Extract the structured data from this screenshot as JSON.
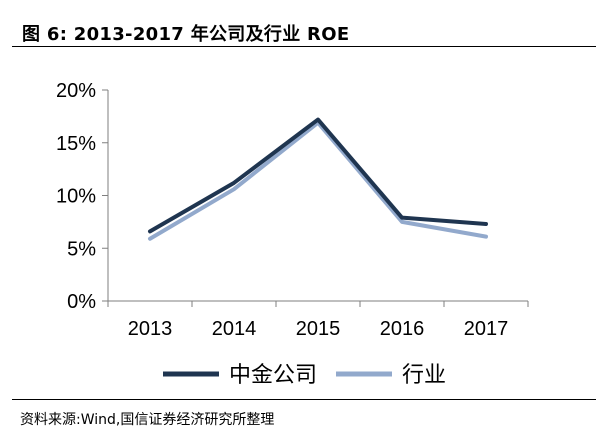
{
  "header": {
    "title": "图 6:  2013-2017 年公司及行业 ROE"
  },
  "footer": {
    "source": "资料来源:Wind,国信证券经济研究所整理"
  },
  "chart_data": {
    "type": "line",
    "title": "",
    "xlabel": "",
    "ylabel": "",
    "categories": [
      "2013",
      "2014",
      "2015",
      "2016",
      "2017"
    ],
    "ylim": [
      0,
      20
    ],
    "yticks": [
      0,
      5,
      10,
      15,
      20
    ],
    "ytick_labels": [
      "0%",
      "5%",
      "10%",
      "15%",
      "20%"
    ],
    "grid": false,
    "legend_position": "bottom",
    "series": [
      {
        "name": "中金公司",
        "color": "#1f3550",
        "values": [
          6.6,
          11.2,
          17.2,
          7.9,
          7.3
        ]
      },
      {
        "name": "行业",
        "color": "#92a9cc",
        "values": [
          5.9,
          10.6,
          16.9,
          7.5,
          6.1
        ]
      }
    ]
  }
}
